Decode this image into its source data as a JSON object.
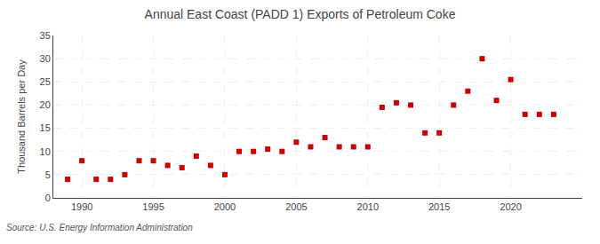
{
  "chart_data": {
    "type": "scatter",
    "title": "Annual East Coast (PADD 1) Exports of Petroleum Coke",
    "ylabel": "Thousand Barrels per Day",
    "annotations": [
      "Source: U.S. Energy Information Administration"
    ],
    "x": [
      1989,
      1990,
      1991,
      1992,
      1993,
      1994,
      1995,
      1996,
      1997,
      1998,
      1999,
      2000,
      2001,
      2002,
      2003,
      2004,
      2005,
      2006,
      2007,
      2008,
      2009,
      2010,
      2011,
      2012,
      2013,
      2014,
      2015,
      2016,
      2017,
      2018,
      2019,
      2020,
      2021,
      2022,
      2023
    ],
    "values": [
      4.0,
      8.0,
      4.0,
      4.0,
      5.0,
      8.0,
      8.0,
      7.0,
      6.5,
      9.0,
      7.0,
      5.0,
      10.0,
      10.0,
      10.5,
      10.0,
      12.0,
      11.0,
      13.0,
      11.0,
      11.0,
      11.0,
      19.5,
      20.5,
      20.0,
      14.0,
      14.0,
      20.0,
      23.0,
      30.0,
      21.0,
      25.5,
      18.0,
      18.0,
      18.0
    ],
    "color": "#cc0000",
    "marker": "square",
    "xlim": [
      1988.0,
      2025.0
    ],
    "xticks": [
      1990,
      1995,
      2000,
      2005,
      2010,
      2015,
      2020
    ],
    "ylim": [
      0,
      35
    ],
    "yticks": [
      0,
      5,
      10,
      15,
      20,
      25,
      30,
      35
    ],
    "grid": true
  }
}
